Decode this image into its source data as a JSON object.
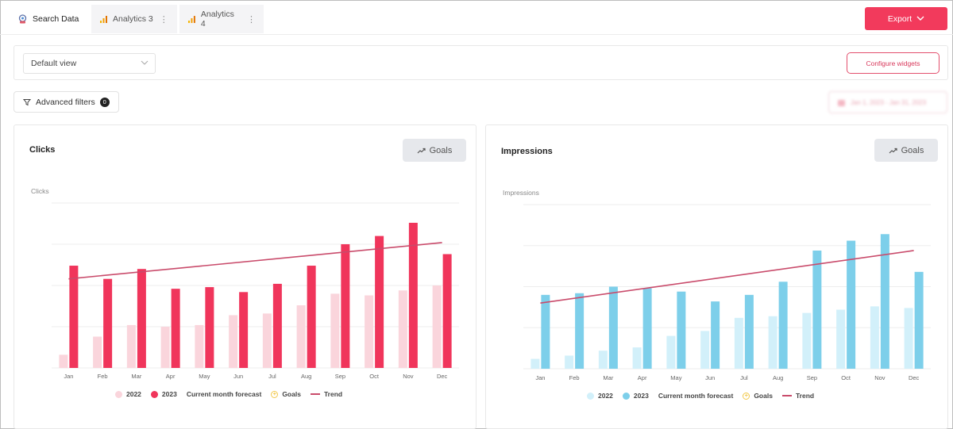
{
  "tabs": [
    {
      "label": "Search Data",
      "icon": "search-data-icon",
      "active": true
    },
    {
      "label": "Analytics 3",
      "icon": "bar-chart-icon",
      "active": false
    },
    {
      "label": "Analytics 4",
      "icon": "bar-chart-icon",
      "active": false
    }
  ],
  "toolbar": {
    "export_label": "Export"
  },
  "view": {
    "selected": "Default view",
    "configure_label": "Configure widgets"
  },
  "filters": {
    "label": "Advanced filters",
    "count": "0",
    "date_range": "Jan 1, 2023 - Jan 31, 2023"
  },
  "colors": {
    "accent": "#f23a5c",
    "clicks_2023": "#f0355b",
    "clicks_2022": "#fad5dc",
    "impressions_2023": "#7dcfea",
    "impressions_2022": "#d2f0fa",
    "trend": "#c94b6b",
    "goals": "#f2c94c"
  },
  "widgets": {
    "clicks": {
      "title": "Clicks",
      "goals_label": "Goals"
    },
    "impressions": {
      "title": "Impressions",
      "goals_label": "Goals"
    }
  },
  "legend": {
    "series_2022": "2022",
    "series_2023": "2023",
    "forecast": "Current month forecast",
    "goals": "Goals",
    "trend": "Trend"
  },
  "chart_data": [
    {
      "type": "bar",
      "title": "Clicks",
      "ylabel": "Clicks",
      "categories": [
        "Jan",
        "Feb",
        "Mar",
        "Apr",
        "May",
        "Jun",
        "Jul",
        "Aug",
        "Sep",
        "Oct",
        "Nov",
        "Dec"
      ],
      "series": [
        {
          "name": "2022",
          "values": [
            8,
            19,
            26,
            25,
            26,
            32,
            33,
            38,
            45,
            44,
            47,
            50
          ]
        },
        {
          "name": "2023",
          "values": [
            62,
            54,
            60,
            48,
            49,
            46,
            51,
            62,
            75,
            80,
            88,
            69
          ]
        }
      ],
      "trend": [
        54,
        76
      ],
      "ylim": [
        0,
        100
      ],
      "grid": true,
      "legend": "bottom"
    },
    {
      "type": "bar",
      "title": "Impressions",
      "ylabel": "Impressions",
      "categories": [
        "Jan",
        "Feb",
        "Mar",
        "Apr",
        "May",
        "Jun",
        "Jul",
        "Aug",
        "Sep",
        "Oct",
        "Nov",
        "Dec"
      ],
      "series": [
        {
          "name": "2022",
          "values": [
            6,
            8,
            11,
            13,
            20,
            23,
            31,
            32,
            34,
            36,
            38,
            37
          ]
        },
        {
          "name": "2023",
          "values": [
            45,
            46,
            50,
            49,
            47,
            41,
            45,
            53,
            72,
            78,
            82,
            59
          ]
        }
      ],
      "trend": [
        40,
        72
      ],
      "ylim": [
        0,
        100
      ],
      "grid": true,
      "legend": "bottom"
    }
  ]
}
